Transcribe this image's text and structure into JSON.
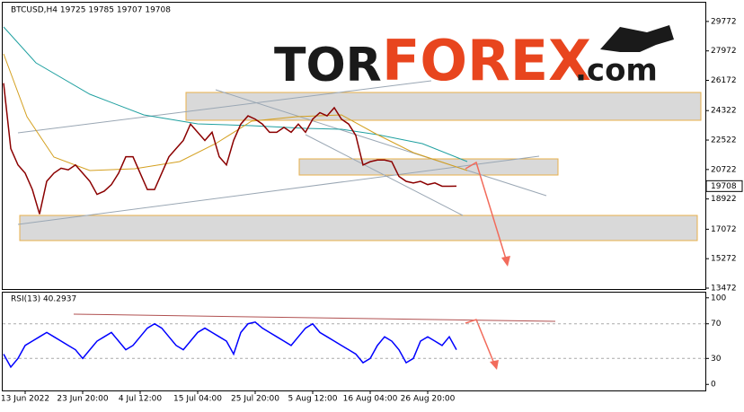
{
  "watermark": {
    "part1": "TOR",
    "part2": "FOREX",
    "part3": ".com"
  },
  "chart_data": [
    {
      "type": "line",
      "title": "BTCUSD,H4  19725 19785 19707 19708",
      "color": "#8b0000",
      "values": [
        26000,
        22000,
        21000,
        20500,
        19500,
        18000,
        20000,
        20500,
        20800,
        20700,
        21000,
        20500,
        20000,
        19200,
        19400,
        19800,
        20500,
        21500,
        21500,
        20500,
        19500,
        19500,
        20500,
        21500,
        22000,
        22500,
        23500,
        23000,
        22500,
        23000,
        21500,
        21000,
        22500,
        23500,
        24000,
        23800,
        23500,
        23000,
        23000,
        23300,
        23000,
        23500,
        23000,
        23800,
        24200,
        24000,
        24500,
        23800,
        23500,
        22800,
        21000,
        21200,
        21300,
        21300,
        21200,
        20300,
        20000,
        19900,
        20000,
        19800,
        19900,
        19700,
        19700,
        19708
      ],
      "last_value": 19708,
      "ylim": [
        13417,
        30863
      ],
      "yticks": [
        29772,
        27972,
        26172,
        24322,
        22522,
        20722,
        18922,
        17072,
        15272,
        13472
      ]
    },
    {
      "type": "line",
      "title": "RSI(13) 40.2937",
      "color": "#0000ff",
      "categories": [
        null,
        null,
        null,
        "13 Jun 2022",
        null,
        null,
        null,
        null,
        null,
        null,
        null,
        "23 Jun 20:00",
        null,
        null,
        null,
        null,
        null,
        null,
        null,
        "4 Jul 12:00",
        null,
        null,
        null,
        null,
        null,
        null,
        null,
        "15 Jul 04:00",
        null,
        null,
        null,
        null,
        null,
        null,
        null,
        "25 Jul 20:00",
        null,
        null,
        null,
        null,
        null,
        null,
        null,
        "5 Aug 12:00",
        null,
        null,
        null,
        null,
        null,
        null,
        null,
        "16 Aug 04:00",
        null,
        null,
        null,
        null,
        null,
        null,
        null,
        "26 Aug 20:00",
        null,
        null,
        null,
        null
      ],
      "values": [
        35,
        20,
        30,
        45,
        50,
        55,
        60,
        55,
        50,
        45,
        40,
        30,
        40,
        50,
        55,
        60,
        50,
        40,
        45,
        55,
        65,
        70,
        65,
        55,
        45,
        40,
        50,
        60,
        65,
        60,
        55,
        50,
        35,
        60,
        70,
        72,
        65,
        60,
        55,
        50,
        45,
        55,
        65,
        70,
        60,
        55,
        50,
        45,
        40,
        35,
        25,
        30,
        45,
        55,
        50,
        40,
        25,
        30,
        50,
        55,
        50,
        45,
        55,
        40
      ],
      "ylim": [
        -7,
        106
      ],
      "yticks": [
        100,
        70,
        30,
        0
      ],
      "grid_values": [
        70,
        30
      ]
    }
  ]
}
